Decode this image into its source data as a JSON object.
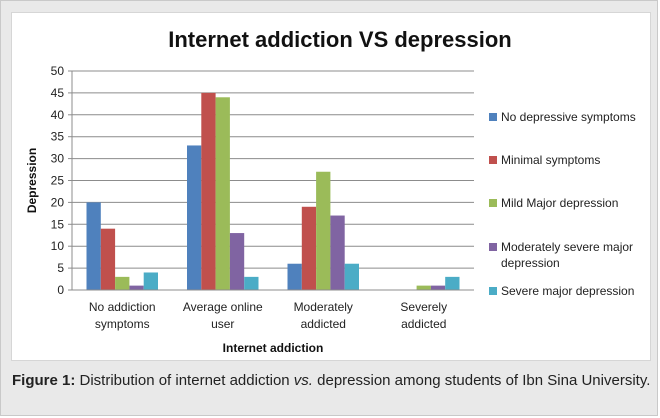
{
  "chart_data": {
    "type": "bar",
    "title": "Internet addiction VS depression",
    "xlabel": "Internet addiction",
    "ylabel": "Depression",
    "ylim": [
      0,
      50
    ],
    "yticks": [
      0,
      5,
      10,
      15,
      20,
      25,
      30,
      35,
      40,
      45,
      50
    ],
    "grid": true,
    "legend_position": "right",
    "categories": [
      [
        "No addiction",
        "symptoms"
      ],
      [
        "Average online",
        "user"
      ],
      [
        "Moderately",
        "addicted"
      ],
      [
        "Severely",
        "addicted"
      ]
    ],
    "series": [
      {
        "name": "No depressive symptoms",
        "name_lines": [
          "No depressive symptoms"
        ],
        "color": "#4f81bd",
        "values": [
          20,
          33,
          6,
          0
        ]
      },
      {
        "name": "Minimal symptoms",
        "name_lines": [
          "Minimal symptoms"
        ],
        "color": "#c0504d",
        "values": [
          14,
          45,
          19,
          0
        ]
      },
      {
        "name": "Mild Major depression",
        "name_lines": [
          "Mild Major depression"
        ],
        "color": "#9bbb59",
        "values": [
          3,
          44,
          27,
          1
        ]
      },
      {
        "name": "Moderately severe major depression",
        "name_lines": [
          "Moderately severe major",
          "depression"
        ],
        "color": "#8064a2",
        "values": [
          1,
          13,
          17,
          1
        ]
      },
      {
        "name": "Severe major depression",
        "name_lines": [
          "Severe major depression"
        ],
        "color": "#4bacc6",
        "values": [
          4,
          3,
          6,
          3
        ]
      }
    ]
  },
  "caption": {
    "label": "Figure 1:",
    "text_before": " Distribution of internet addiction ",
    "text_vs": "vs.",
    "text_after": " depression among students of Ibn Sina University."
  }
}
